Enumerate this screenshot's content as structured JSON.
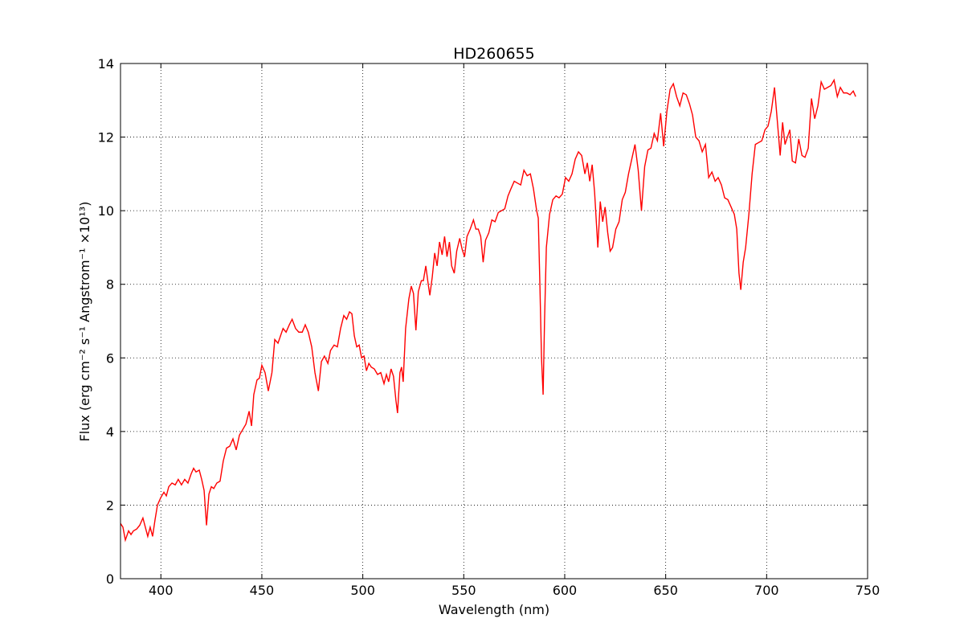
{
  "chart_data": {
    "type": "line",
    "title": "HD260655",
    "x_label": "Wavelength (nm)",
    "y_label": "Flux  (erg cm⁻² s⁻¹  Angstrom⁻¹  ×10¹³)",
    "xlim": [
      380,
      750
    ],
    "ylim": [
      0,
      14
    ],
    "xticks": [
      400,
      450,
      500,
      550,
      600,
      650,
      700,
      750
    ],
    "yticks": [
      0,
      2,
      4,
      6,
      8,
      10,
      12,
      14
    ],
    "grid": true,
    "series": [
      {
        "color": "#ff0000",
        "x": [
          380,
          381.2,
          382.4,
          384,
          385.2,
          386.4,
          388,
          389.5,
          391.1,
          392.3,
          393.5,
          394.7,
          395.9,
          397.1,
          398.3,
          399.9,
          401.5,
          402.7,
          403.9,
          405.5,
          407.1,
          408.6,
          410.2,
          411.8,
          413.4,
          415,
          416.2,
          417.4,
          419,
          420.2,
          421.4,
          422.6,
          423.8,
          425,
          426.2,
          427.7,
          429.3,
          430.9,
          432.5,
          434.1,
          435.7,
          437.3,
          438.9,
          440.5,
          442.1,
          443.7,
          444.9,
          446,
          447.6,
          448.8,
          450,
          451.6,
          453.2,
          455,
          456.4,
          458,
          460.5,
          462,
          463.6,
          465,
          466.7,
          468.3,
          470,
          471.5,
          473,
          474.7,
          476.3,
          478,
          479.5,
          481,
          482.7,
          484,
          485.8,
          487.4,
          489,
          490.6,
          492,
          493.4,
          494.6,
          495.8,
          497,
          498.2,
          499.4,
          500.6,
          501.8,
          503,
          504.2,
          505.7,
          507.3,
          508.9,
          510.5,
          511.7,
          512.8,
          514,
          515.2,
          516.4,
          517.2,
          518.4,
          519.2,
          520,
          521.2,
          522.8,
          524,
          525.1,
          526.3,
          527.5,
          529,
          530,
          531.2,
          532.4,
          533.2,
          534.4,
          535.6,
          536.8,
          538,
          539.3,
          540.5,
          541.7,
          542.9,
          544,
          545.3,
          546.5,
          548,
          549.2,
          550.4,
          551.6,
          553.2,
          554.8,
          556,
          557.2,
          558.4,
          559.6,
          560.8,
          562.4,
          563.9,
          565.5,
          567.1,
          568.7,
          570.3,
          571.9,
          573.4,
          575,
          576.6,
          578.2,
          579.8,
          581.4,
          583,
          584.5,
          586.1,
          586.9,
          587.7,
          588.5,
          589.3,
          590,
          590.9,
          592.5,
          594.1,
          595.7,
          597.2,
          598.8,
          600.4,
          602,
          603.6,
          605.2,
          606.8,
          608.4,
          610,
          611.2,
          612.4,
          613.6,
          614.8,
          616.4,
          617.6,
          618.8,
          620,
          621.3,
          622.5,
          623.7,
          625.3,
          626.9,
          628.5,
          630,
          631.6,
          633.2,
          634.8,
          636.4,
          638,
          639.6,
          641.2,
          642.7,
          644.3,
          645.9,
          647.5,
          649,
          650.6,
          652.2,
          653.8,
          655.4,
          657,
          658.6,
          660.2,
          661.8,
          663.3,
          664.9,
          666.5,
          668.1,
          669.7,
          671.3,
          672.9,
          674.5,
          676,
          677.6,
          679.2,
          680.8,
          682.4,
          684,
          685.2,
          686.3,
          687.2,
          688.4,
          689.6,
          691.2,
          692.8,
          694.4,
          696,
          697.6,
          699.2,
          700.7,
          702.3,
          703.9,
          705.5,
          706.7,
          707.9,
          709.1,
          710.3,
          711.5,
          712.7,
          714.3,
          715.9,
          717.5,
          719,
          720.6,
          722.2,
          723.8,
          725.4,
          727,
          728.6,
          730.2,
          731.8,
          733.4,
          735,
          736.5,
          738.1,
          739.7,
          741.3,
          742.9,
          744.1
        ],
        "values": [
          1.5,
          1.4,
          1.05,
          1.3,
          1.2,
          1.3,
          1.35,
          1.45,
          1.65,
          1.4,
          1.15,
          1.4,
          1.15,
          1.6,
          2.0,
          2.2,
          2.35,
          2.25,
          2.5,
          2.6,
          2.55,
          2.7,
          2.55,
          2.7,
          2.6,
          2.85,
          3.0,
          2.9,
          2.95,
          2.7,
          2.4,
          1.45,
          2.3,
          2.5,
          2.45,
          2.6,
          2.65,
          3.2,
          3.55,
          3.6,
          3.8,
          3.5,
          3.9,
          4.05,
          4.2,
          4.55,
          4.15,
          5.0,
          5.4,
          5.45,
          5.8,
          5.6,
          5.1,
          5.6,
          6.5,
          6.4,
          6.8,
          6.7,
          6.9,
          7.05,
          6.8,
          6.7,
          6.7,
          6.9,
          6.7,
          6.3,
          5.6,
          5.1,
          5.9,
          6.05,
          5.85,
          6.2,
          6.35,
          6.3,
          6.8,
          7.15,
          7.05,
          7.25,
          7.2,
          6.6,
          6.3,
          6.35,
          6.0,
          6.05,
          5.65,
          5.85,
          5.75,
          5.7,
          5.55,
          5.6,
          5.3,
          5.55,
          5.35,
          5.7,
          5.5,
          4.85,
          4.5,
          5.6,
          5.75,
          5.35,
          6.8,
          7.6,
          7.95,
          7.75,
          6.75,
          7.8,
          8.1,
          8.1,
          8.5,
          8.0,
          7.7,
          8.2,
          8.85,
          8.5,
          9.15,
          8.8,
          9.3,
          8.75,
          9.15,
          8.5,
          8.3,
          8.9,
          9.25,
          8.95,
          8.75,
          9.3,
          9.5,
          9.75,
          9.5,
          9.5,
          9.3,
          8.6,
          9.2,
          9.4,
          9.75,
          9.7,
          9.95,
          10.0,
          10.05,
          10.4,
          10.6,
          10.8,
          10.75,
          10.7,
          11.1,
          10.95,
          11.0,
          10.6,
          10.0,
          9.8,
          8.0,
          6.0,
          5.0,
          7.0,
          9.0,
          9.9,
          10.3,
          10.4,
          10.35,
          10.45,
          10.9,
          10.8,
          11.0,
          11.4,
          11.6,
          11.5,
          11.0,
          11.3,
          10.8,
          11.25,
          10.5,
          9.0,
          10.25,
          9.7,
          10.1,
          9.4,
          8.9,
          9.0,
          9.5,
          9.7,
          10.3,
          10.5,
          11.0,
          11.4,
          11.8,
          11.1,
          10.0,
          11.2,
          11.65,
          11.7,
          12.1,
          11.9,
          12.65,
          11.75,
          12.7,
          13.3,
          13.45,
          13.1,
          12.85,
          13.2,
          13.15,
          12.9,
          12.6,
          12.0,
          11.9,
          11.6,
          11.8,
          10.9,
          11.05,
          10.8,
          10.9,
          10.7,
          10.35,
          10.3,
          10.1,
          9.9,
          9.5,
          8.3,
          7.85,
          8.6,
          9.0,
          9.9,
          11.0,
          11.8,
          11.85,
          11.9,
          12.2,
          12.3,
          12.7,
          13.35,
          12.3,
          11.5,
          12.4,
          11.8,
          12.0,
          12.2,
          11.35,
          11.3,
          11.95,
          11.5,
          11.45,
          11.7,
          13.05,
          12.5,
          12.85,
          13.5,
          13.3,
          13.35,
          13.4,
          13.55,
          13.1,
          13.35,
          13.2,
          13.2,
          13.15,
          13.25,
          13.1
        ]
      }
    ]
  }
}
